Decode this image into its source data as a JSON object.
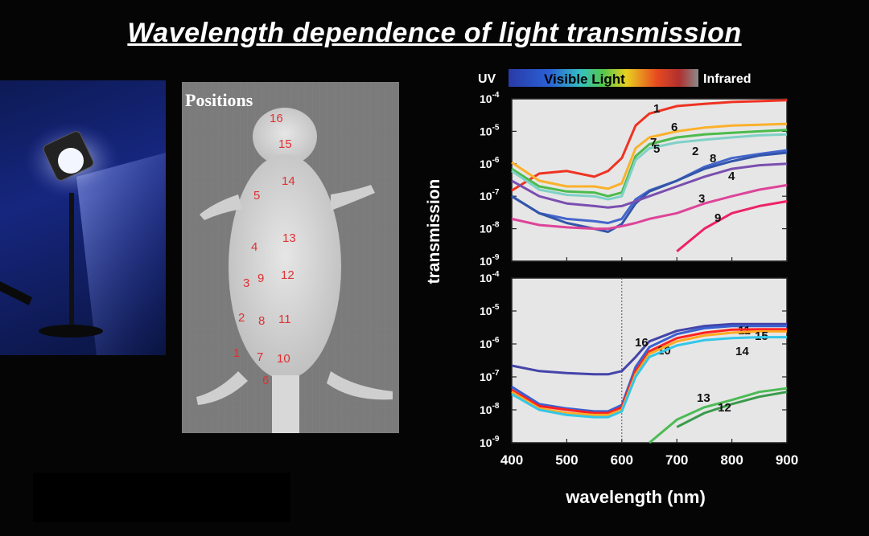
{
  "title": "Wavelength dependence of light transmission",
  "spectrum_bar": {
    "uv_label": "UV",
    "visible_label": "Visible Light",
    "infrared_label": "Infrared"
  },
  "image": {
    "positions_title": "Positions",
    "positions": [
      {
        "label": "16"
      },
      {
        "label": "15"
      },
      {
        "label": "14"
      },
      {
        "label": "5"
      },
      {
        "label": "13"
      },
      {
        "label": "4"
      },
      {
        "label": "12"
      },
      {
        "label": "3"
      },
      {
        "label": "9"
      },
      {
        "label": "2"
      },
      {
        "label": "8"
      },
      {
        "label": "11"
      },
      {
        "label": "1"
      },
      {
        "label": "7"
      },
      {
        "label": "10"
      },
      {
        "label": "6"
      }
    ]
  },
  "chart_data": [
    {
      "type": "line",
      "ylabel": "transmission",
      "xlabel": "wavelength (nm)",
      "xlim": [
        400,
        900
      ],
      "ylim": [
        1e-09,
        0.0001
      ],
      "yscale": "log",
      "ytick_exponents": [
        "-4",
        "-5",
        "-6",
        "-7",
        "-8",
        "-9"
      ],
      "x": [
        400,
        450,
        500,
        550,
        575,
        600,
        625,
        650,
        700,
        750,
        800,
        850,
        900
      ],
      "series": [
        {
          "name": "1",
          "color": "#ee3322",
          "values": [
            1.5e-07,
            5e-07,
            6e-07,
            4e-07,
            6e-07,
            1.5e-06,
            1.5e-05,
            3.5e-05,
            6e-05,
            7e-05,
            8e-05,
            8.5e-05,
            9e-05
          ]
        },
        {
          "name": "6",
          "color": "#fbb12b",
          "values": [
            1.1e-06,
            3e-07,
            2e-07,
            2e-07,
            1.7e-07,
            2.5e-07,
            3e-06,
            6.5e-06,
            1e-05,
            1.3e-05,
            1.5e-05,
            1.6e-05,
            1.7e-05
          ]
        },
        {
          "name": "7",
          "color": "#4cbb4c",
          "values": [
            7e-07,
            2e-07,
            1.4e-07,
            1.3e-07,
            1e-07,
            1.3e-07,
            1.7e-06,
            4e-06,
            6.5e-06,
            8e-06,
            9e-06,
            1e-05,
            1.1e-05
          ]
        },
        {
          "name": "5",
          "color": "#7fd1c7",
          "values": [
            6e-07,
            1.6e-07,
            1.1e-07,
            1e-07,
            8e-08,
            1e-07,
            1.3e-06,
            3e-06,
            4.5e-06,
            5.5e-06,
            6.5e-06,
            7.5e-06,
            8e-06
          ]
        },
        {
          "name": "2",
          "color": "#4466cc",
          "values": [
            1e-07,
            3e-08,
            2e-08,
            1.7e-08,
            1.5e-08,
            2e-08,
            8e-08,
            1.5e-07,
            3e-07,
            8e-07,
            1.5e-06,
            2e-06,
            2.6e-06
          ]
        },
        {
          "name": "8",
          "color": "#3355aa",
          "values": [
            1e-07,
            3e-08,
            1.5e-08,
            1e-08,
            8e-09,
            1.4e-08,
            6e-08,
            1.4e-07,
            3e-07,
            7e-07,
            1.2e-06,
            1.8e-06,
            2.2e-06
          ]
        },
        {
          "name": "4",
          "color": "#7a4fb0",
          "values": [
            3e-07,
            1e-07,
            6e-08,
            5e-08,
            4.5e-08,
            5e-08,
            7e-08,
            1e-07,
            2e-07,
            4e-07,
            7e-07,
            9e-07,
            1e-06
          ]
        },
        {
          "name": "3",
          "color": "#dd4499",
          "values": [
            2e-08,
            1.3e-08,
            1.1e-08,
            1e-08,
            1e-08,
            1.2e-08,
            1.5e-08,
            2e-08,
            3e-08,
            6e-08,
            1e-07,
            1.6e-07,
            2.2e-07
          ]
        },
        {
          "name": "9",
          "color": "#ee2266",
          "values": [
            null,
            null,
            null,
            null,
            null,
            null,
            null,
            null,
            2e-09,
            1e-08,
            3e-08,
            5e-08,
            7e-08
          ]
        }
      ]
    },
    {
      "type": "line",
      "ylabel": "transmission",
      "xlabel": "wavelength (nm)",
      "xlim": [
        400,
        900
      ],
      "ylim": [
        1e-09,
        0.0001
      ],
      "yscale": "log",
      "ytick_exponents": [
        "-4",
        "-5",
        "-6",
        "-7",
        "-8",
        "-9"
      ],
      "xticks": [
        "400",
        "500",
        "600",
        "700",
        "800",
        "900"
      ],
      "x": [
        400,
        450,
        500,
        550,
        575,
        600,
        625,
        650,
        700,
        750,
        800,
        850,
        900
      ],
      "series": [
        {
          "name": "16",
          "color": "#4444aa",
          "values": [
            2.2e-07,
            1.5e-07,
            1.3e-07,
            1.2e-07,
            1.2e-07,
            1.5e-07,
            4e-07,
            1.2e-06,
            2.5e-06,
            3.5e-06,
            4e-06,
            4e-06,
            4e-06
          ]
        },
        {
          "name": "11",
          "color": "#3a60d0",
          "values": [
            5e-08,
            1.5e-08,
            1.1e-08,
            9e-09,
            9e-09,
            1.4e-08,
            2e-07,
            8e-07,
            2e-06,
            3e-06,
            3.5e-06,
            3.5e-06,
            3.5e-06
          ]
        },
        {
          "name": "10",
          "color": "#ff2222",
          "values": [
            4e-08,
            1.3e-08,
            1e-08,
            8e-09,
            8e-09,
            1.2e-08,
            1.5e-07,
            6e-07,
            1.5e-06,
            2.2e-06,
            2.7e-06,
            2.8e-06,
            2.8e-06
          ]
        },
        {
          "name": "15",
          "color": "#ffaa22",
          "values": [
            3.5e-08,
            1.1e-08,
            8e-09,
            7e-09,
            7e-09,
            1e-08,
            1.2e-07,
            5e-07,
            1.2e-06,
            1.8e-06,
            2.2e-06,
            2.4e-06,
            2.4e-06
          ]
        },
        {
          "name": "14",
          "color": "#33c7e8",
          "values": [
            3e-08,
            1e-08,
            7e-09,
            6e-09,
            6e-09,
            9e-09,
            1e-07,
            4e-07,
            9e-07,
            1.3e-06,
            1.5e-06,
            1.6e-06,
            1.6e-06
          ]
        },
        {
          "name": "13",
          "color": "#4cbb55",
          "values": [
            null,
            null,
            null,
            null,
            null,
            null,
            null,
            1e-09,
            5e-09,
            1.2e-08,
            2e-08,
            3.5e-08,
            4.5e-08
          ]
        },
        {
          "name": "12",
          "color": "#3a9a4a",
          "values": [
            null,
            null,
            null,
            null,
            null,
            null,
            null,
            null,
            3e-09,
            8e-09,
            1.5e-08,
            2.5e-08,
            3.5e-08
          ]
        }
      ]
    }
  ]
}
